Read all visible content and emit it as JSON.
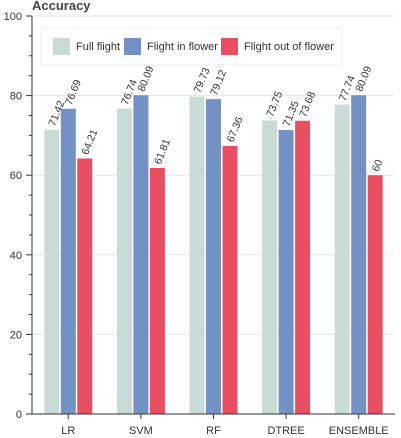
{
  "chart_data": {
    "type": "bar",
    "title": "Accuracy",
    "xlabel": "",
    "ylabel": "",
    "ylim": [
      0,
      100
    ],
    "yticks": [
      0,
      20,
      40,
      60,
      80,
      100
    ],
    "grid": "horizontal",
    "legend_position": "top",
    "categories": [
      "LR",
      "SVM",
      "RF",
      "DTREE",
      "ENSEMBLE"
    ],
    "series": [
      {
        "name": "Full flight",
        "color": "#c9dbd6",
        "values": [
          71.42,
          76.74,
          79.73,
          73.75,
          77.74
        ]
      },
      {
        "name": "Flight in flower",
        "color": "#7491c4",
        "values": [
          76.69,
          80.09,
          79.12,
          71.35,
          80.09
        ]
      },
      {
        "name": "Flight out of flower",
        "color": "#e84f62",
        "values": [
          64.21,
          61.81,
          67.36,
          73.68,
          60
        ]
      }
    ]
  }
}
